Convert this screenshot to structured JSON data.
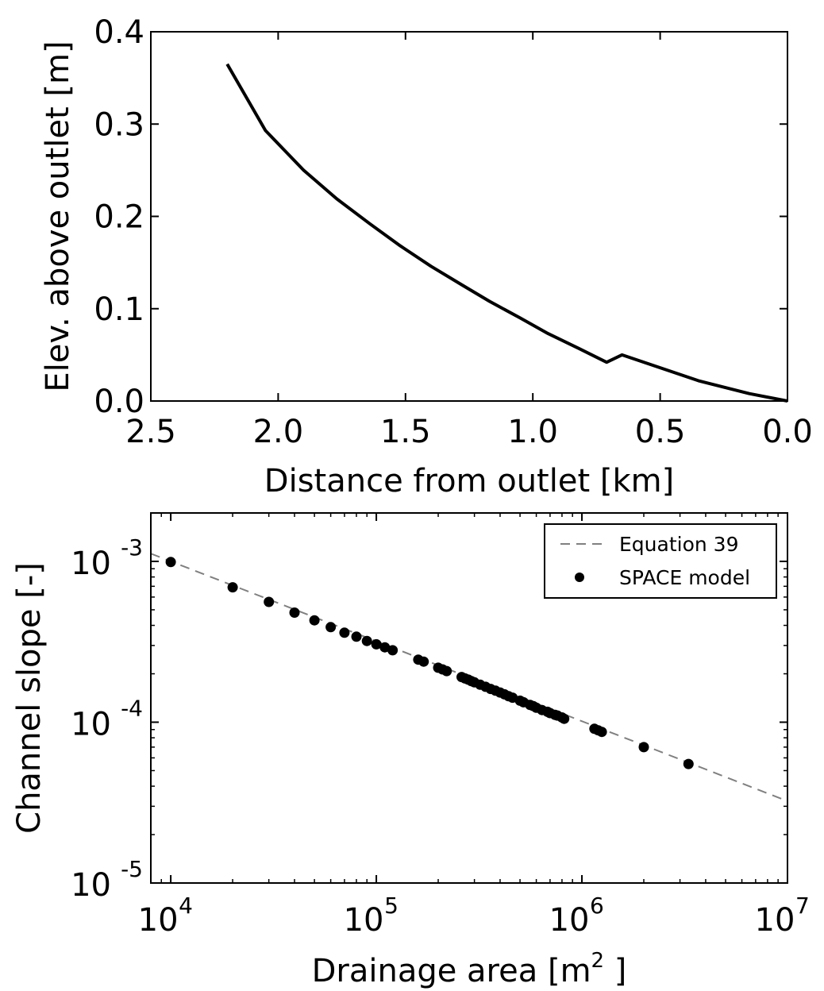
{
  "colors": {
    "profile_line": "#000000",
    "model_points": "#000000",
    "equation_line": "#808080"
  },
  "chart_data": [
    {
      "type": "line",
      "xlabel": "Distance from outlet [km]",
      "ylabel": "Elev. above outlet [m]",
      "xlim": [
        2.5,
        0.0
      ],
      "ylim": [
        0.0,
        0.4
      ],
      "x_reversed": true,
      "xticks": [
        "2.5",
        "2.0",
        "1.5",
        "1.0",
        "0.5",
        "0.0"
      ],
      "yticks": [
        "0.0",
        "0.1",
        "0.2",
        "0.3",
        "0.4"
      ],
      "series": [
        {
          "x": [
            2.2,
            2.05,
            1.9,
            1.77,
            1.64,
            1.52,
            1.4,
            1.28,
            1.17,
            1.05,
            0.94,
            0.82,
            0.71,
            0.65,
            0.5,
            0.35,
            0.15,
            0.0
          ],
          "y": [
            0.365,
            0.293,
            0.25,
            0.219,
            0.192,
            0.168,
            0.146,
            0.126,
            0.108,
            0.09,
            0.073,
            0.057,
            0.042,
            0.05,
            0.036,
            0.022,
            0.008,
            0.0
          ]
        }
      ]
    },
    {
      "type": "scatter",
      "xlabel": "Drainage area [m",
      "xlabel_sup": "2",
      "xlabel_end": " ]",
      "ylabel": "Channel slope [-]",
      "xscale": "log",
      "yscale": "log",
      "xlim": [
        8000,
        10000000
      ],
      "ylim": [
        1e-05,
        0.002
      ],
      "xticks": [
        {
          "base": "10",
          "exp": "4"
        },
        {
          "base": "10",
          "exp": "5"
        },
        {
          "base": "10",
          "exp": "6"
        },
        {
          "base": "10",
          "exp": "7"
        }
      ],
      "yticks": [
        {
          "base": "10",
          "exp": "-5"
        },
        {
          "base": "10",
          "exp": "-4"
        },
        {
          "base": "10",
          "exp": "-3"
        }
      ],
      "legend_position": "top-right",
      "series": [
        {
          "name": "Equation 39",
          "style": "dashed",
          "x": [
            8000,
            10000000
          ],
          "y": [
            0.001118,
            3.23e-05
          ]
        },
        {
          "name": "SPACE model",
          "style": "markers",
          "x": [
            10000,
            20000,
            30000,
            40000,
            50000,
            60000,
            70000,
            80000,
            90000,
            100000,
            110000,
            120000,
            160000,
            170000,
            200000,
            210000,
            220000,
            260000,
            270000,
            280000,
            290000,
            300000,
            320000,
            340000,
            360000,
            380000,
            400000,
            420000,
            440000,
            460000,
            500000,
            520000,
            560000,
            580000,
            600000,
            640000,
            680000,
            700000,
            740000,
            760000,
            800000,
            820000,
            1150000,
            1200000,
            1250000,
            2000000,
            3300000
          ],
          "y": [
            0.00099,
            0.00069,
            0.00056,
            0.00048,
            0.00043,
            0.00039,
            0.00036,
            0.00034,
            0.00032,
            0.000305,
            0.000292,
            0.00028,
            0.000245,
            0.000238,
            0.000218,
            0.000213,
            0.000208,
            0.000191,
            0.000187,
            0.000184,
            0.00018,
            0.000177,
            0.000171,
            0.000166,
            0.000161,
            0.000157,
            0.000153,
            0.000149,
            0.000145,
            0.000142,
            0.000136,
            0.000133,
            0.000128,
            0.000126,
            0.000123,
            0.000119,
            0.000116,
            0.000114,
            0.000111,
            0.00011,
            0.000107,
            0.000105,
            9.1e-05,
            8.9e-05,
            8.7e-05,
            7e-05,
            5.5e-05
          ]
        }
      ]
    }
  ]
}
